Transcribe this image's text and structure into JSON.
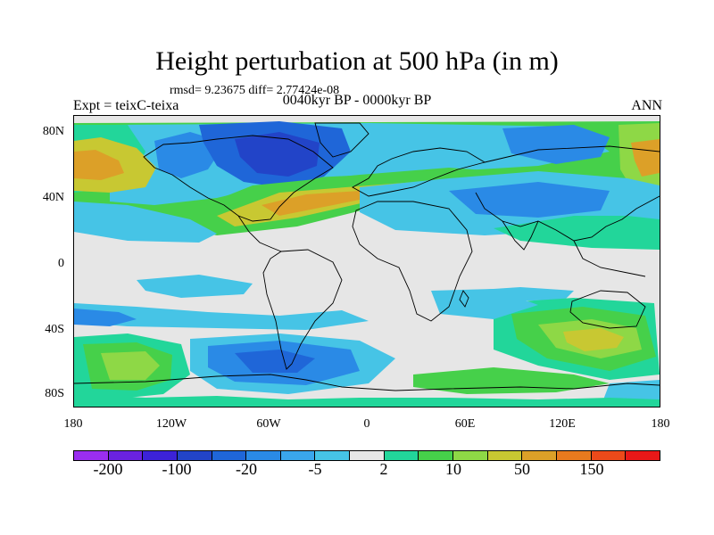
{
  "title": "Height perturbation at 500 hPa (in m)",
  "stats": "rmsd= 9.23675 diff= 2.77424e-08",
  "experiment": "Expt = teixC-teixa",
  "period": "0040kyr BP - 0000kyr BP",
  "season": "ANN",
  "y_axis_labels": [
    "80N",
    "40N",
    "0",
    "40S",
    "80S"
  ],
  "x_axis_labels": [
    "180",
    "120W",
    "60W",
    "0",
    "60E",
    "120E",
    "180"
  ],
  "colorbar": {
    "colors": [
      "#9a2ef0",
      "#6a22e0",
      "#3c22d8",
      "#2244c8",
      "#1f66d8",
      "#2a8ae6",
      "#3aa6ec",
      "#46c4e6",
      "#e6e6e6",
      "#22d69a",
      "#46d04a",
      "#8ed846",
      "#c8c832",
      "#dca028",
      "#e87a1e",
      "#ec4a1a",
      "#e81818"
    ],
    "labels": [
      "-200",
      "-100",
      "-20",
      "-5",
      "2",
      "10",
      "50",
      "150"
    ]
  },
  "colors": {
    "neutral": "#e6e6e6",
    "light_blue": "#46c4e6",
    "mid_blue": "#2a8ae6",
    "blue": "#1f66d8",
    "deep_blue": "#2244c8",
    "teal": "#22d69a",
    "green": "#46d04a",
    "yellow_green": "#8ed846",
    "olive": "#c8c832",
    "orange": "#dca028"
  }
}
